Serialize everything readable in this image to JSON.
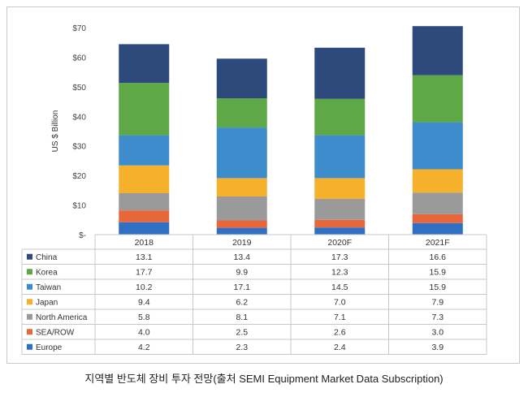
{
  "chart_data": {
    "type": "bar",
    "stacked": true,
    "categories": [
      "2018",
      "2019",
      "2020F",
      "2021F"
    ],
    "series": [
      {
        "name": "China",
        "values": [
          13.1,
          13.4,
          17.3,
          16.6
        ],
        "color": "#2e4a7d"
      },
      {
        "name": "Korea",
        "values": [
          17.7,
          9.9,
          12.3,
          15.9
        ],
        "color": "#5fa847"
      },
      {
        "name": "Taiwan",
        "values": [
          10.2,
          17.1,
          14.5,
          15.9
        ],
        "color": "#3f8ccc"
      },
      {
        "name": "Japan",
        "values": [
          9.4,
          6.2,
          7.0,
          7.9
        ],
        "color": "#f6b12c"
      },
      {
        "name": "North America",
        "values": [
          5.8,
          8.1,
          7.1,
          7.3
        ],
        "color": "#9a9a9a"
      },
      {
        "name": "SEA/ROW",
        "values": [
          4.0,
          2.5,
          2.6,
          3.0
        ],
        "color": "#e8673a"
      },
      {
        "name": "Europe",
        "values": [
          4.2,
          2.3,
          2.4,
          3.9
        ],
        "color": "#2f6fc4"
      }
    ],
    "stack_order": [
      "Europe",
      "SEA/ROW",
      "North America",
      "Japan",
      "Taiwan",
      "Korea",
      "China"
    ],
    "ylabel": "US $ Billion",
    "ylim": [
      0,
      70
    ],
    "yticks": [
      0,
      10,
      20,
      30,
      40,
      50,
      60,
      70
    ],
    "ytick_labels": [
      "$-",
      "$10",
      "$20",
      "$30",
      "$40",
      "$50",
      "$60",
      "$70"
    ],
    "grid": false,
    "legend": "data table below chart"
  },
  "caption": "지역별 반도체 장비 투자 전망(출처 SEMI Equipment Market Data Subscription)"
}
